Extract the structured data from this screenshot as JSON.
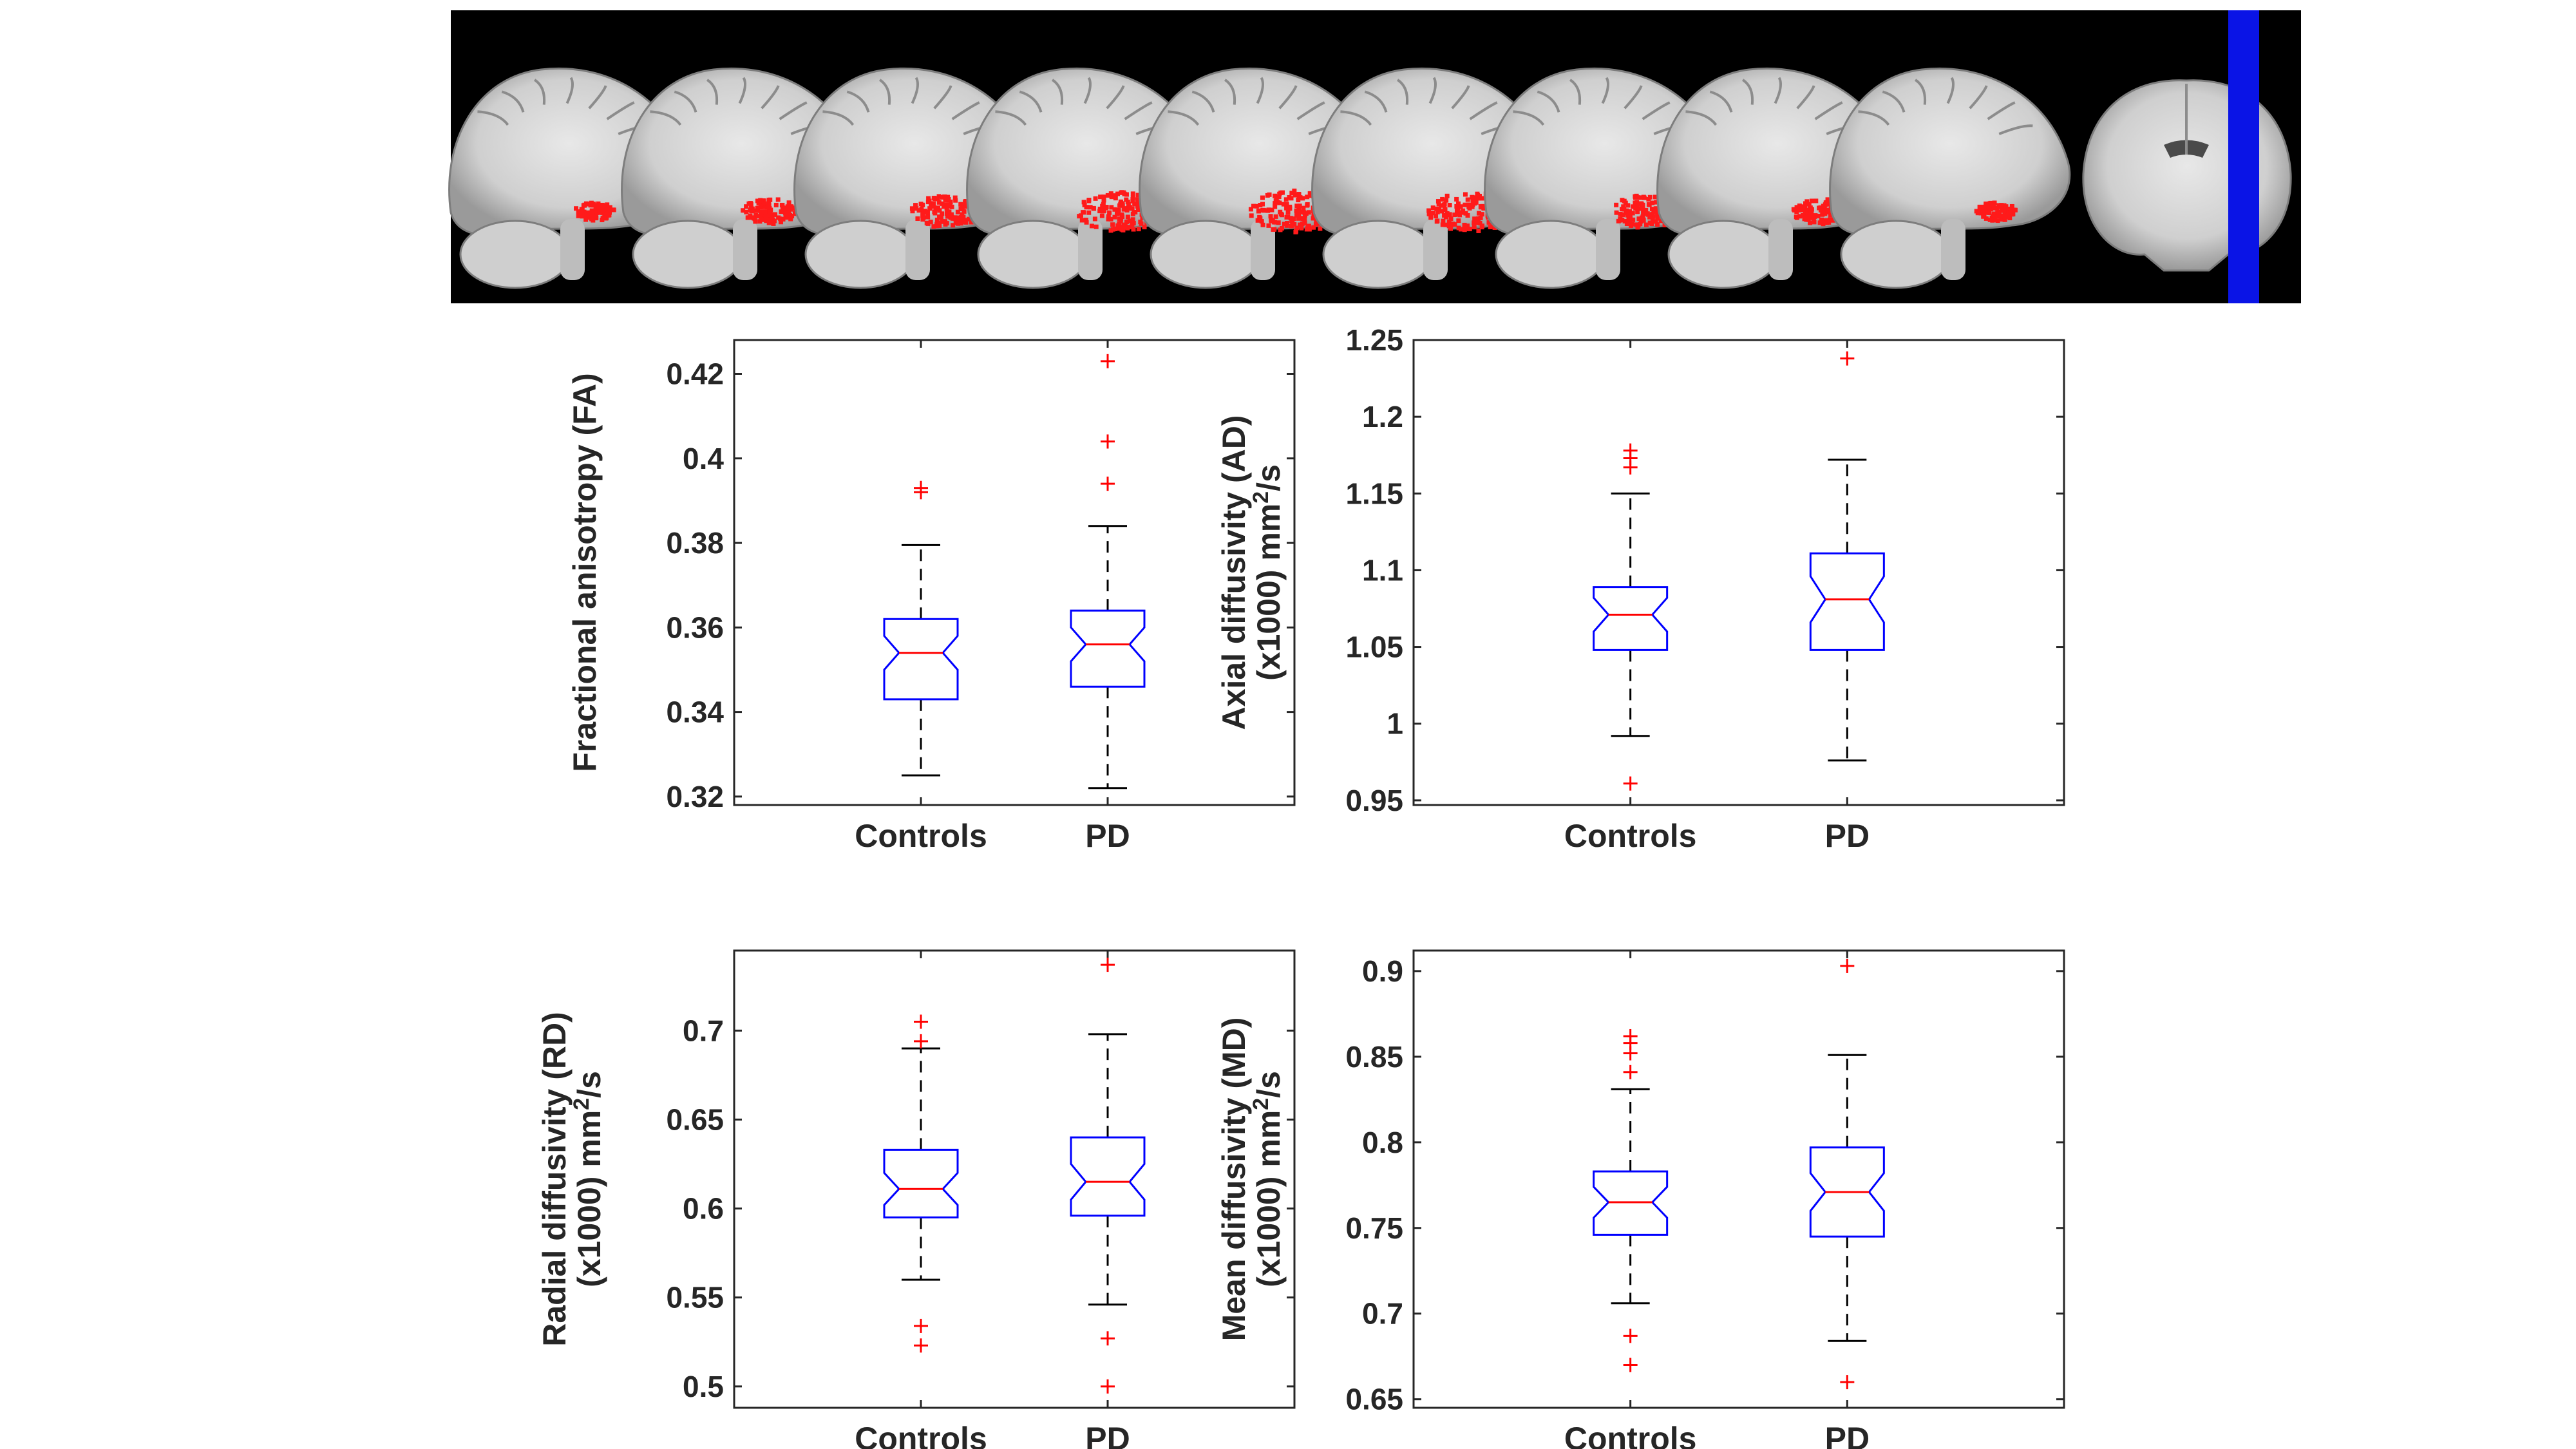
{
  "figure": {
    "brain_panel_description_omitted": true,
    "colors": {
      "brain_background": "#000000",
      "cluster": "#ff1a1a",
      "slice_marker": "#0a14e6",
      "box": "#0000ff",
      "median": "#ff0000",
      "outlier": "#ff0000",
      "whisker": "#000000"
    }
  },
  "chart_data": [
    {
      "type": "box",
      "ylabel_lines": [
        "Fractional anisotropy (FA)"
      ],
      "ylim": [
        0.318,
        0.428
      ],
      "yticks": [
        0.32,
        0.34,
        0.36,
        0.38,
        0.4,
        0.42
      ],
      "ytick_labels": [
        "0.32",
        "0.34",
        "0.36",
        "0.38",
        "0.4",
        "0.42"
      ],
      "categories": [
        "Controls",
        "PD"
      ],
      "boxes": [
        {
          "name": "Controls",
          "whisker_low": 0.325,
          "q1": 0.343,
          "median": 0.354,
          "q3": 0.362,
          "whisker_high": 0.3795,
          "notch_low": 0.35,
          "notch_high": 0.358,
          "outliers": [
            0.392,
            0.393
          ]
        },
        {
          "name": "PD",
          "whisker_low": 0.322,
          "q1": 0.346,
          "median": 0.356,
          "q3": 0.364,
          "whisker_high": 0.384,
          "notch_low": 0.352,
          "notch_high": 0.36,
          "outliers": [
            0.394,
            0.404,
            0.423
          ]
        }
      ]
    },
    {
      "type": "box",
      "ylabel_lines": [
        "Axial diffusivity (AD)",
        "(x1000) mm²/s"
      ],
      "ylim": [
        0.947,
        1.25
      ],
      "yticks": [
        0.95,
        1,
        1.05,
        1.1,
        1.15,
        1.2,
        1.25
      ],
      "ytick_labels": [
        "0.95",
        "1",
        "1.05",
        "1.1",
        "1.15",
        "1.2",
        "1.25"
      ],
      "categories": [
        "Controls",
        "PD"
      ],
      "boxes": [
        {
          "name": "Controls",
          "whisker_low": 0.992,
          "q1": 1.048,
          "median": 1.071,
          "q3": 1.089,
          "whisker_high": 1.15,
          "notch_low": 1.06,
          "notch_high": 1.082,
          "outliers": [
            0.961,
            1.167,
            1.173,
            1.178
          ]
        },
        {
          "name": "PD",
          "whisker_low": 0.976,
          "q1": 1.048,
          "median": 1.081,
          "q3": 1.111,
          "whisker_high": 1.172,
          "notch_low": 1.066,
          "notch_high": 1.096,
          "outliers": [
            1.238
          ]
        }
      ]
    },
    {
      "type": "box",
      "ylabel_lines": [
        "Radial diffusivity (RD)",
        "(x1000) mm²/s"
      ],
      "ylim": [
        0.488,
        0.745
      ],
      "yticks": [
        0.5,
        0.55,
        0.6,
        0.65,
        0.7
      ],
      "ytick_labels": [
        "0.5",
        "0.55",
        "0.6",
        "0.65",
        "0.7"
      ],
      "categories": [
        "Controls",
        "PD"
      ],
      "boxes": [
        {
          "name": "Controls",
          "whisker_low": 0.56,
          "q1": 0.595,
          "median": 0.611,
          "q3": 0.633,
          "whisker_high": 0.69,
          "notch_low": 0.602,
          "notch_high": 0.62,
          "outliers": [
            0.523,
            0.534,
            0.694,
            0.705
          ]
        },
        {
          "name": "PD",
          "whisker_low": 0.546,
          "q1": 0.596,
          "median": 0.615,
          "q3": 0.64,
          "whisker_high": 0.698,
          "notch_low": 0.605,
          "notch_high": 0.625,
          "outliers": [
            0.5,
            0.527,
            0.737
          ]
        }
      ]
    },
    {
      "type": "box",
      "ylabel_lines": [
        "Mean diffusivity (MD)",
        "(x1000) mm²/s"
      ],
      "ylim": [
        0.645,
        0.912
      ],
      "yticks": [
        0.65,
        0.7,
        0.75,
        0.8,
        0.85,
        0.9
      ],
      "ytick_labels": [
        "0.65",
        "0.7",
        "0.75",
        "0.8",
        "0.85",
        "0.9"
      ],
      "categories": [
        "Controls",
        "PD"
      ],
      "boxes": [
        {
          "name": "Controls",
          "whisker_low": 0.706,
          "q1": 0.746,
          "median": 0.765,
          "q3": 0.783,
          "whisker_high": 0.831,
          "notch_low": 0.756,
          "notch_high": 0.774,
          "outliers": [
            0.67,
            0.687,
            0.841,
            0.852,
            0.858,
            0.862
          ]
        },
        {
          "name": "PD",
          "whisker_low": 0.684,
          "q1": 0.745,
          "median": 0.771,
          "q3": 0.797,
          "whisker_high": 0.851,
          "notch_low": 0.76,
          "notch_high": 0.782,
          "outliers": [
            0.66,
            0.903
          ]
        }
      ]
    }
  ]
}
